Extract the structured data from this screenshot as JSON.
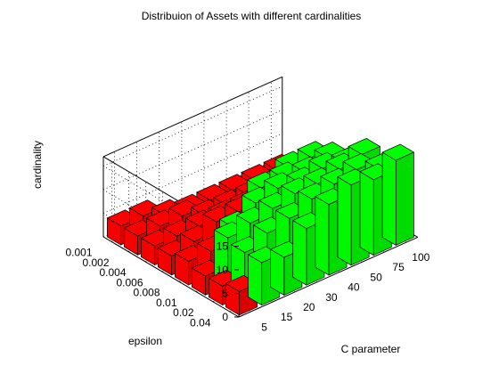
{
  "chart_data": {
    "type": "bar3",
    "title": "Distribuion of Assets with different cardinalities",
    "xlabel": "C parameter",
    "ylabel": "epsilon",
    "zlabel": "cardinality",
    "x_categories": [
      "5",
      "15",
      "20",
      "30",
      "40",
      "50",
      "75",
      "100"
    ],
    "y_categories": [
      "0.04",
      "0.02",
      "0.01",
      "0.008",
      "0.006",
      "0.004",
      "0.002",
      "0.001"
    ],
    "z_ticks": [
      0,
      5,
      10,
      15
    ],
    "zlim": [
      0,
      17
    ],
    "grid": true,
    "colors": {
      "green": "#00ff00",
      "red": "#ff0000",
      "background": "#ffffff"
    },
    "values": [
      [
        5,
        9,
        8,
        12,
        15,
        17,
        16,
        18
      ],
      [
        4,
        9,
        11,
        12,
        14,
        15,
        16,
        14
      ],
      [
        4,
        10,
        11,
        12,
        13,
        13,
        14,
        15
      ],
      [
        5,
        5,
        8,
        11,
        12,
        11,
        12,
        11
      ],
      [
        4,
        5,
        7,
        7,
        10,
        10,
        9,
        10
      ],
      [
        4,
        4,
        4,
        4,
        4,
        6,
        8,
        8
      ],
      [
        4,
        4,
        4,
        2,
        2,
        2,
        2,
        2
      ],
      [
        4,
        4,
        2,
        1,
        1,
        1,
        1,
        1
      ]
    ],
    "colors_grid": [
      [
        "red",
        "green",
        "green",
        "green",
        "green",
        "green",
        "green",
        "green"
      ],
      [
        "red",
        "green",
        "green",
        "green",
        "green",
        "green",
        "green",
        "green"
      ],
      [
        "red",
        "green",
        "green",
        "green",
        "green",
        "green",
        "green",
        "green"
      ],
      [
        "red",
        "red",
        "green",
        "green",
        "green",
        "green",
        "green",
        "green"
      ],
      [
        "red",
        "red",
        "red",
        "red",
        "green",
        "green",
        "green",
        "green"
      ],
      [
        "red",
        "red",
        "red",
        "red",
        "red",
        "green",
        "green",
        "green"
      ],
      [
        "red",
        "red",
        "red",
        "red",
        "red",
        "red",
        "red",
        "red"
      ],
      [
        "red",
        "red",
        "red",
        "red",
        "red",
        "red",
        "red",
        "red"
      ]
    ]
  }
}
